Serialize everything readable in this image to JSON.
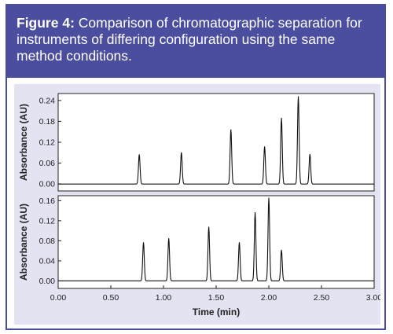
{
  "figure": {
    "label": "Figure 4:",
    "caption": "Comparison of chromatographic separation for instruments of differing configuration using the same method conditions."
  },
  "colors": {
    "header_bg": "#4b4e9e",
    "panel_bg": "#e3e3f2",
    "trace": "#111111"
  },
  "chart_data": [
    {
      "type": "line",
      "panel": "top",
      "title": "",
      "xlabel": "",
      "ylabel": "Absorbance (AU)",
      "xlim": [
        0,
        3.0
      ],
      "ylim": [
        -0.02,
        0.26
      ],
      "x_ticks": [],
      "y_ticks": [
        0.0,
        0.06,
        0.12,
        0.18,
        0.24
      ],
      "y_tick_labels": [
        "0.00",
        "0.06",
        "0.12",
        "0.18",
        "0.24"
      ],
      "peaks": [
        {
          "t": 0.77,
          "height": 0.085
        },
        {
          "t": 1.17,
          "height": 0.091
        },
        {
          "t": 1.64,
          "height": 0.157
        },
        {
          "t": 1.96,
          "height": 0.108
        },
        {
          "t": 2.12,
          "height": 0.19
        },
        {
          "t": 2.28,
          "height": 0.252
        },
        {
          "t": 2.39,
          "height": 0.086
        }
      ],
      "baseline": 0.0
    },
    {
      "type": "line",
      "panel": "bottom",
      "title": "",
      "xlabel": "Time (min)",
      "ylabel": "Absorbance (AU)",
      "xlim": [
        0,
        3.0
      ],
      "ylim": [
        -0.015,
        0.17
      ],
      "x_ticks": [
        0.0,
        0.5,
        1.0,
        1.5,
        2.0,
        2.5,
        3.0
      ],
      "x_tick_labels": [
        "0.00",
        "0.50",
        "1.00",
        "1.50",
        "2.00",
        "2.50",
        "3.00"
      ],
      "y_ticks": [
        0.0,
        0.04,
        0.08,
        0.12,
        0.16
      ],
      "y_tick_labels": [
        "0.00",
        "0.04",
        "0.08",
        "0.12",
        "0.16"
      ],
      "peaks": [
        {
          "t": 0.81,
          "height": 0.077
        },
        {
          "t": 1.05,
          "height": 0.085
        },
        {
          "t": 1.43,
          "height": 0.108
        },
        {
          "t": 1.72,
          "height": 0.077
        },
        {
          "t": 1.87,
          "height": 0.137
        },
        {
          "t": 2.0,
          "height": 0.166
        },
        {
          "t": 2.12,
          "height": 0.062
        }
      ],
      "baseline": 0.0
    }
  ]
}
